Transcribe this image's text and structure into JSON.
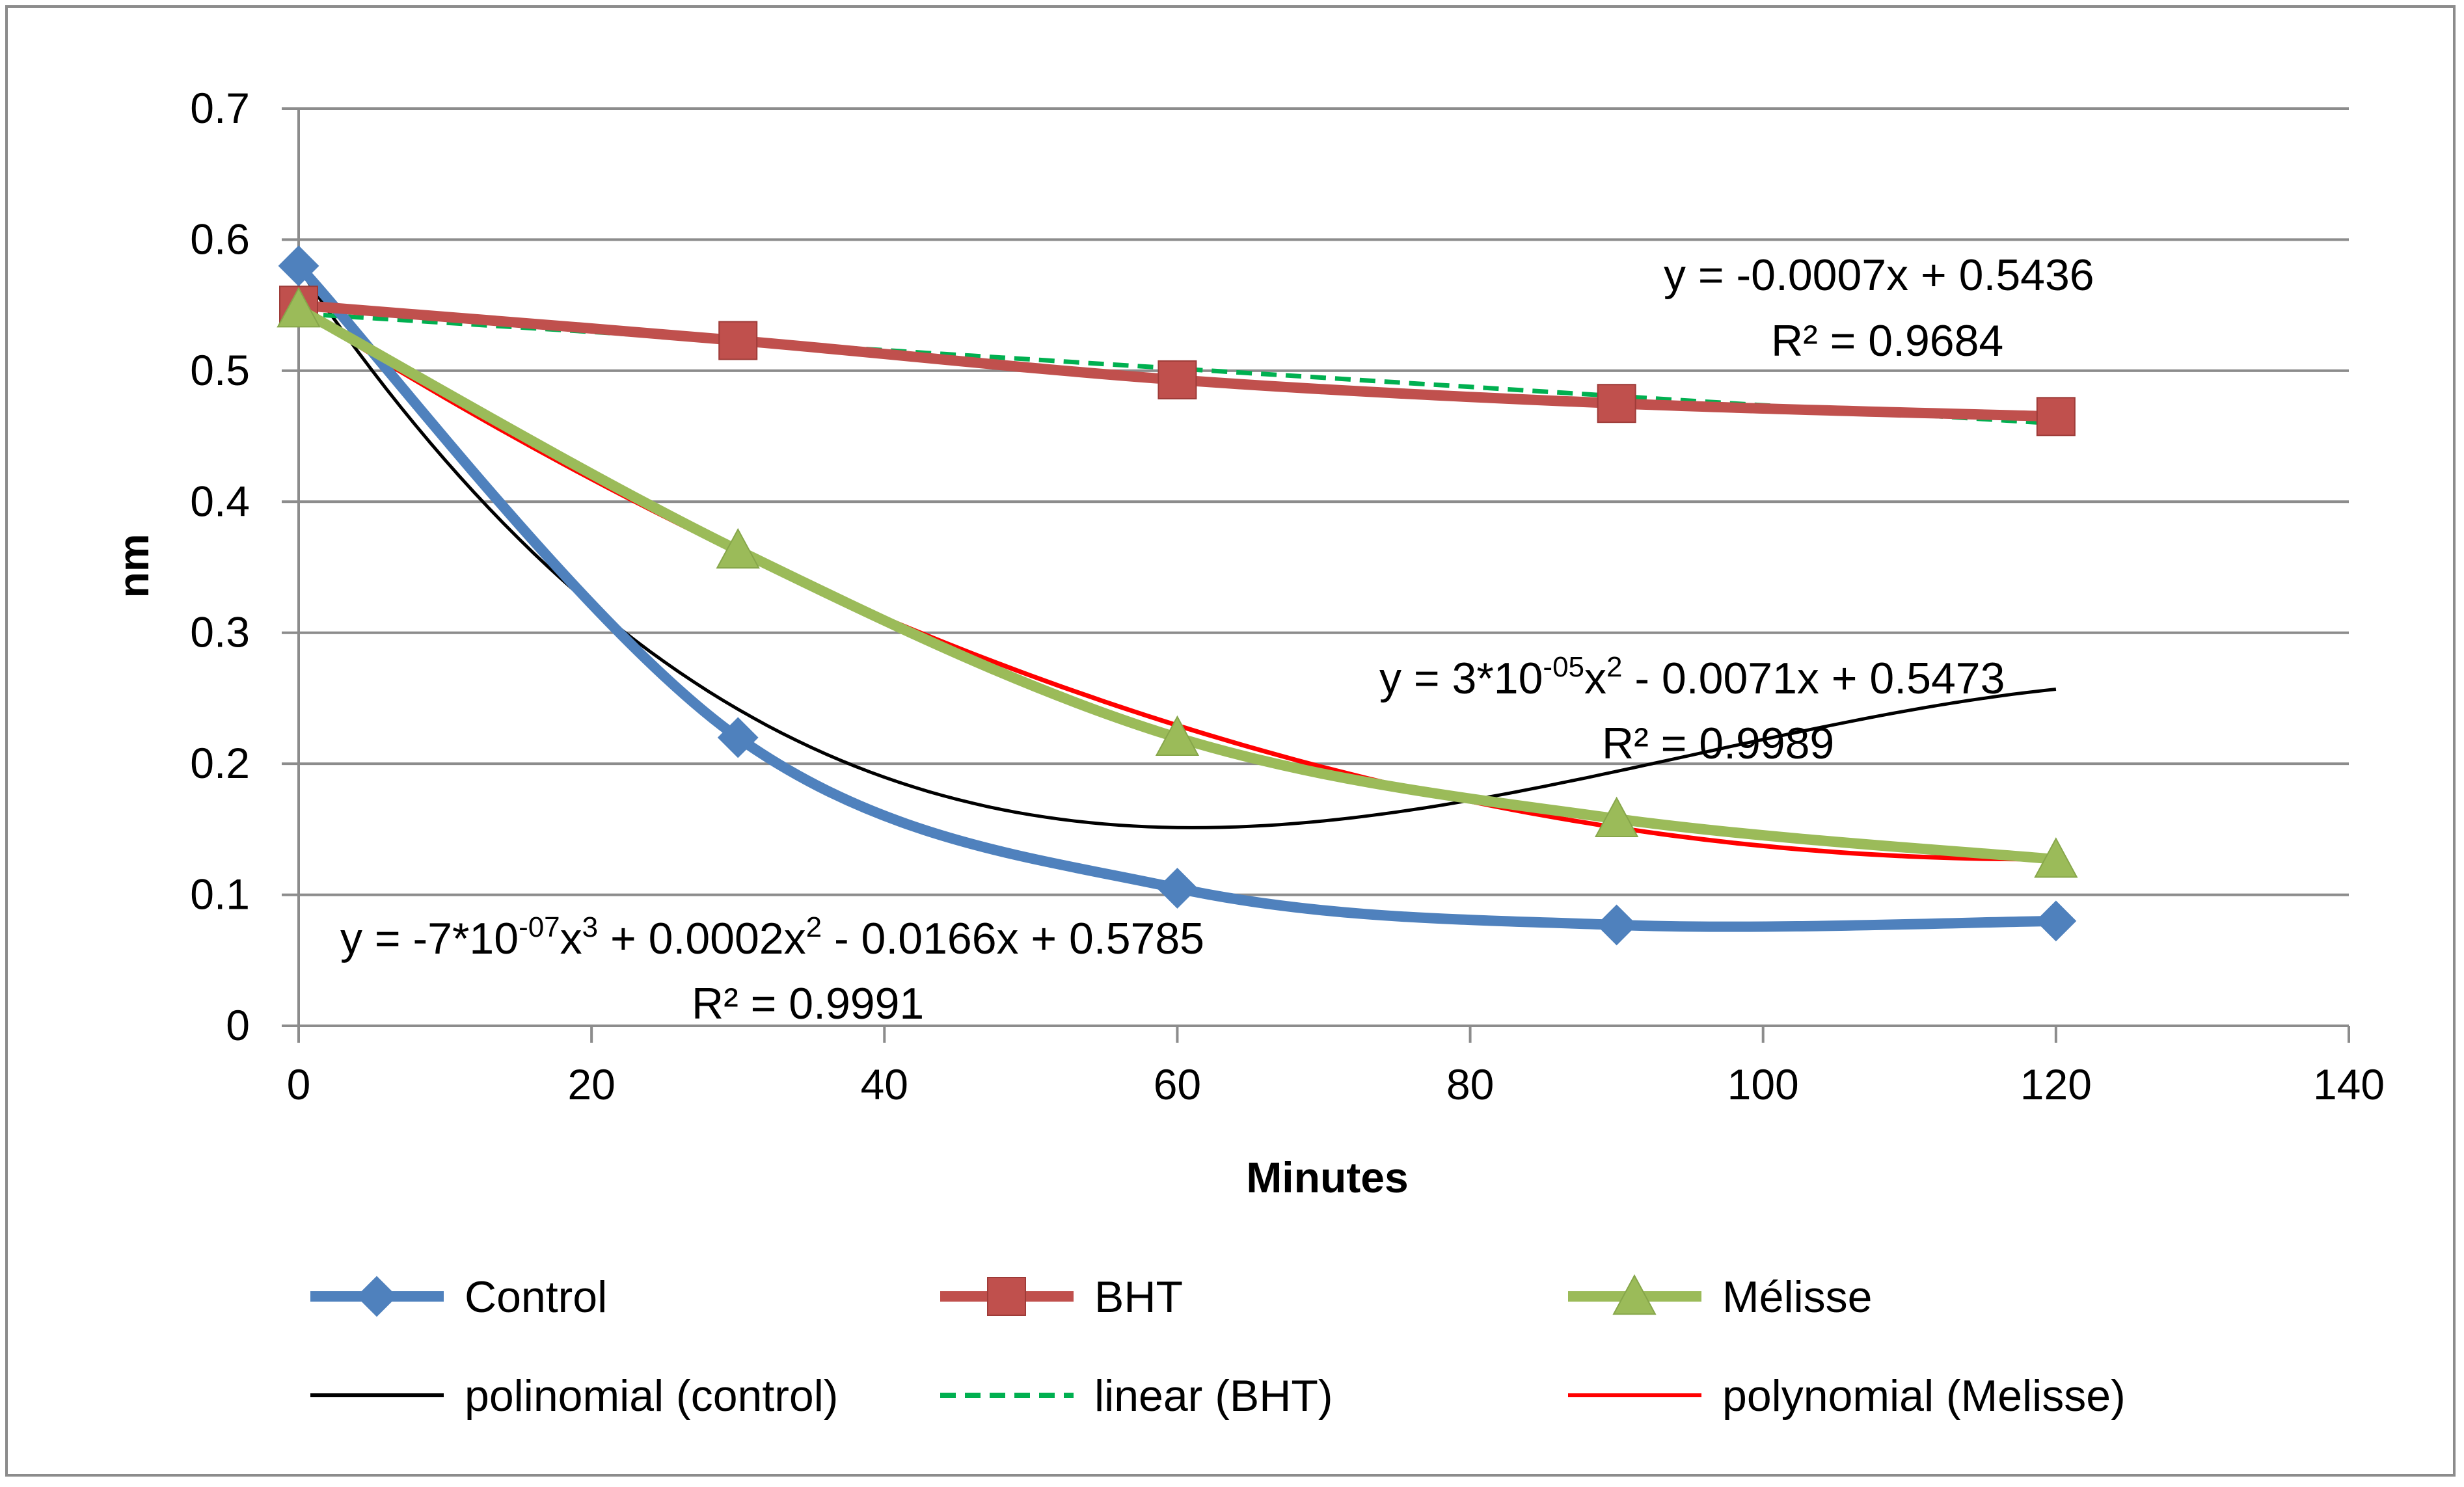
{
  "chart_data": {
    "type": "line",
    "title": "",
    "xlabel": "Minutes",
    "ylabel": "nm",
    "xlim": [
      0,
      140
    ],
    "ylim": [
      0,
      0.7
    ],
    "xticks": [
      0,
      20,
      40,
      60,
      80,
      100,
      120,
      140
    ],
    "yticks": [
      0,
      0.1,
      0.2,
      0.3,
      0.4,
      0.5,
      0.6,
      0.7
    ],
    "xtick_labels": [
      "0",
      "20",
      "40",
      "60",
      "80",
      "100",
      "120",
      "140"
    ],
    "ytick_labels": [
      "0",
      "0.1",
      "0.2",
      "0.3",
      "0.4",
      "0.5",
      "0.6",
      "0.7"
    ],
    "grid": true,
    "legend_position": "bottom",
    "x": [
      0,
      30,
      60,
      90,
      120
    ],
    "series": [
      {
        "name": "Control",
        "values": [
          0.58,
          0.22,
          0.105,
          0.077,
          0.08
        ],
        "color": "#4f81bd",
        "marker": "diamond"
      },
      {
        "name": "BHT",
        "values": [
          0.55,
          0.523,
          0.493,
          0.475,
          0.465
        ],
        "color": "#c0504d",
        "marker": "square"
      },
      {
        "name": "Mélisse",
        "values": [
          0.547,
          0.363,
          0.22,
          0.158,
          0.127
        ],
        "color": "#9bbb59",
        "marker": "triangle"
      }
    ],
    "trendlines": [
      {
        "name": "polinomial (control)",
        "kind": "poly3",
        "coefficients": [
          0.5785,
          -0.0166,
          0.0002,
          -7e-07
        ],
        "color": "#000000",
        "dash": false
      },
      {
        "name": "linear (BHT)",
        "kind": "linear",
        "coefficients": [
          0.5436,
          -0.0007
        ],
        "color": "#00b050",
        "dash": true
      },
      {
        "name": "polynomial (Melisse)",
        "kind": "poly2",
        "coefficients": [
          0.5473,
          -0.0071,
          3e-05
        ],
        "color": "#ff0000",
        "dash": false
      }
    ],
    "annotations": {
      "bht": {
        "equation": "y = -0.0007x + 0.5436",
        "r2": "R² = 0.9684"
      },
      "melisse": {
        "equation_a": "y = 3*10",
        "exp1": "-05",
        "equation_b": "x",
        "exp2": "2",
        "equation_c": " - 0.0071x + 0.5473",
        "r2": "R² = 0.9989"
      },
      "control": {
        "equation_a": "y = -7*10",
        "exp1": "-07",
        "equation_b": "x",
        "exp2": "3",
        "equation_c": " + 0.0002x",
        "exp3": "2",
        "equation_d": " - 0.0166x + 0.5785",
        "r2": "R² = 0.9991"
      }
    }
  }
}
